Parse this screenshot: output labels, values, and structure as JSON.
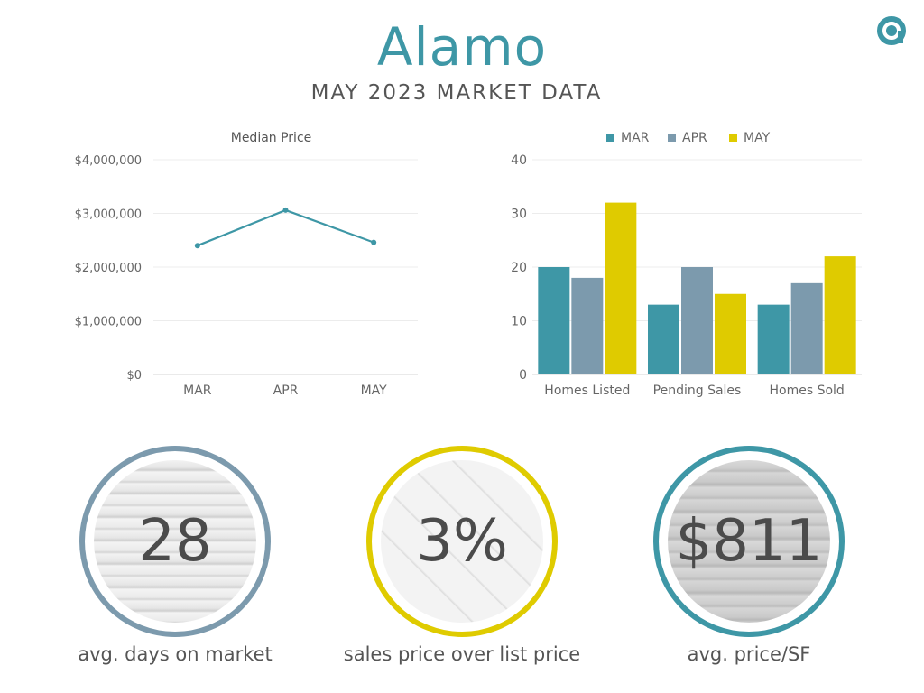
{
  "header": {
    "title": "Alamo",
    "subtitle": "MAY 2023 MARKET DATA",
    "accent_color": "#3e97a6",
    "logo_icon": "a-circle-logo-icon"
  },
  "chart_data": [
    {
      "type": "line",
      "title": "Median Price",
      "categories": [
        "MAR",
        "APR",
        "MAY"
      ],
      "series": [
        {
          "values": [
            2400000,
            3060000,
            2460000
          ],
          "color": "#3e97a6"
        }
      ],
      "ylim": [
        0,
        4000000
      ],
      "yticks": [
        0,
        1000000,
        2000000,
        3000000,
        4000000
      ],
      "ytick_labels": [
        "$0",
        "$1,000,000",
        "$2,000,000",
        "$3,000,000",
        "$4,000,000"
      ],
      "grid": true
    },
    {
      "type": "bar",
      "categories": [
        "Homes Listed",
        "Pending Sales",
        "Homes Sold"
      ],
      "series": [
        {
          "name": "MAR",
          "values": [
            20,
            13,
            13
          ],
          "color": "#3e97a6"
        },
        {
          "name": "APR",
          "values": [
            18,
            20,
            17
          ],
          "color": "#7c9aad"
        },
        {
          "name": "MAY",
          "values": [
            32,
            15,
            22
          ],
          "color": "#dfcb00"
        }
      ],
      "ylim": [
        0,
        40
      ],
      "yticks": [
        0,
        10,
        20,
        30,
        40
      ],
      "ytick_labels": [
        "0",
        "10",
        "20",
        "30",
        "40"
      ],
      "legend": "top",
      "grid": true
    }
  ],
  "stats": [
    {
      "value": "28",
      "label": "avg. days on market",
      "ring_color": "#7c9aad"
    },
    {
      "value": "3%",
      "label": "sales price over list price",
      "ring_color": "#dfcb00"
    },
    {
      "value": "$811",
      "label": "avg. price/SF",
      "ring_color": "#3e97a6"
    }
  ]
}
